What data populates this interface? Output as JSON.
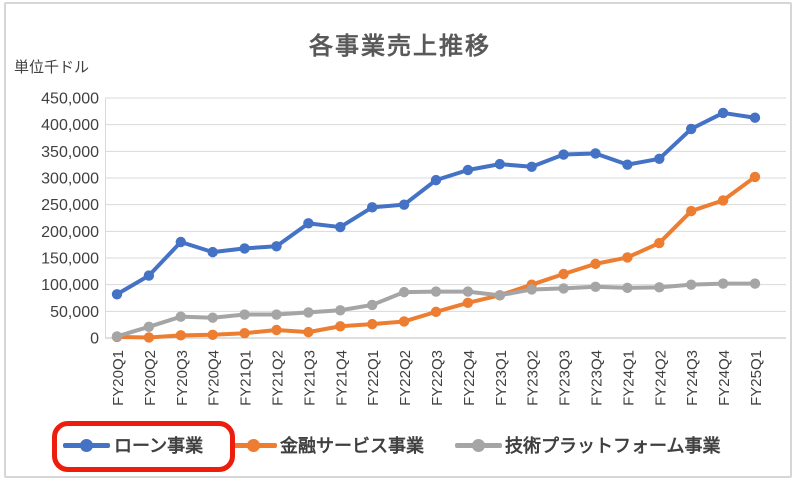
{
  "chart_data": {
    "type": "line",
    "title": "各事業売上推移",
    "unit_label": "単位千ドル",
    "categories": [
      "FY20Q1",
      "FY20Q2",
      "FY20Q3",
      "FY20Q4",
      "FY21Q1",
      "FY21Q2",
      "FY21Q3",
      "FY21Q4",
      "FY22Q1",
      "FY22Q2",
      "FY22Q3",
      "FY22Q4",
      "FY23Q1",
      "FY23Q2",
      "FY23Q3",
      "FY23Q4",
      "FY24Q1",
      "FY24Q2",
      "FY24Q3",
      "FY24Q4",
      "FY25Q1"
    ],
    "series": [
      {
        "name": "ローン事業",
        "color": "#4472C4",
        "values": [
          82000,
          117000,
          180000,
          161000,
          168000,
          172000,
          215000,
          208000,
          245000,
          250000,
          296000,
          315000,
          326000,
          321000,
          344000,
          346000,
          325000,
          336000,
          392000,
          422000,
          413000
        ]
      },
      {
        "name": "金融サービス事業",
        "color": "#ED7D31",
        "values": [
          2000,
          1000,
          5000,
          6000,
          9000,
          15000,
          11000,
          22000,
          26000,
          31000,
          49000,
          66000,
          80000,
          100000,
          120000,
          139000,
          151000,
          178000,
          238000,
          258000,
          302000
        ]
      },
      {
        "name": "技術プラットフォーム事業",
        "color": "#A5A5A5",
        "values": [
          3000,
          21000,
          40000,
          38000,
          44000,
          44000,
          48000,
          52000,
          62000,
          86000,
          87000,
          87000,
          80000,
          91000,
          93000,
          96000,
          94000,
          95000,
          100000,
          102000,
          102000
        ]
      }
    ],
    "ylim": [
      0,
      450000
    ],
    "ytick_step": 50000,
    "ytick_labels": [
      "0",
      "50,000",
      "100,000",
      "150,000",
      "200,000",
      "250,000",
      "300,000",
      "350,000",
      "400,000",
      "450,000"
    ],
    "grid": true,
    "legend_position": "bottom",
    "annotation": {
      "shape": "red-rounded-rectangle",
      "target_legend_item": "ローン事業",
      "color": "#ed1c0d"
    }
  },
  "colors": {
    "grid": "#D9D9D9",
    "axis": "#BFBFBF",
    "tick_text": "#404040",
    "title_text": "#595959",
    "frame_border": "#D6D6D6",
    "highlight_red": "#ED1C0D"
  }
}
